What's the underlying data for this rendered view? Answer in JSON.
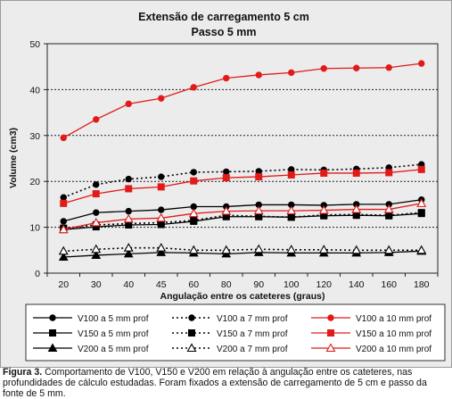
{
  "chart_data": {
    "type": "line",
    "title": "Extensão de carregamento 5 cm",
    "subtitle": "Passo 5 mm",
    "xlabel": "Angulação entre os cateteres (graus)",
    "ylabel": "Volume (cm3)",
    "ylim": [
      0,
      50
    ],
    "yticks": [
      0,
      10,
      20,
      30,
      40,
      50
    ],
    "grid": "horizontal dotted",
    "legend_position": "bottom",
    "categories": [
      "20",
      "30",
      "40",
      "45",
      "60",
      "80",
      "90",
      "100",
      "120",
      "140",
      "160",
      "180"
    ],
    "series": [
      {
        "name": "V100 a 5 mm prof",
        "color": "#000000",
        "line": "solid",
        "marker": "circle",
        "values": [
          11.3,
          13.2,
          13.5,
          13.8,
          14.5,
          14.5,
          14.9,
          14.9,
          14.8,
          15.0,
          15.0,
          16.0
        ]
      },
      {
        "name": "V100 a 7 mm prof",
        "color": "#000000",
        "line": "dotted",
        "marker": "circle",
        "values": [
          16.5,
          19.3,
          20.5,
          21.0,
          22.0,
          22.1,
          22.2,
          22.6,
          22.5,
          22.7,
          23.0,
          23.7
        ]
      },
      {
        "name": "V100 a 10 mm prof",
        "color": "#e21a1a",
        "line": "solid",
        "marker": "circle",
        "values": [
          29.5,
          33.5,
          36.9,
          38.1,
          40.5,
          42.5,
          43.2,
          43.7,
          44.6,
          44.7,
          44.8,
          45.7
        ]
      },
      {
        "name": "V150 a 5 mm prof",
        "color": "#000000",
        "line": "solid",
        "marker": "square",
        "values": [
          9.5,
          10.1,
          10.5,
          10.6,
          11.3,
          12.3,
          12.3,
          12.2,
          12.5,
          12.6,
          12.5,
          13.0
        ]
      },
      {
        "name": "V150 a 7 mm prof",
        "color": "#000000",
        "line": "dotted",
        "marker": "square",
        "values": [
          9.8,
          10.5,
          10.8,
          11.0,
          11.5,
          12.6,
          12.4,
          12.2,
          12.7,
          12.8,
          12.6,
          13.2
        ]
      },
      {
        "name": "V150 a 10 mm prof",
        "color": "#e21a1a",
        "line": "solid",
        "marker": "square",
        "values": [
          15.2,
          17.3,
          18.4,
          18.8,
          20.1,
          20.8,
          21.0,
          21.4,
          21.8,
          21.8,
          21.9,
          22.6
        ]
      },
      {
        "name": "V200 a 5 mm prof",
        "color": "#000000",
        "line": "solid",
        "marker": "triangle",
        "values": [
          3.5,
          3.9,
          4.2,
          4.5,
          4.4,
          4.2,
          4.5,
          4.4,
          4.4,
          4.4,
          4.5,
          4.8
        ]
      },
      {
        "name": "V200 a 7 mm prof",
        "color": "#000000",
        "line": "dotted",
        "marker": "triangle-open",
        "values": [
          4.8,
          5.2,
          5.5,
          5.5,
          5.0,
          5.0,
          5.2,
          5.1,
          5.1,
          5.0,
          5.0,
          5.0
        ]
      },
      {
        "name": "V200 a 10 mm prof",
        "color": "#e21a1a",
        "line": "solid",
        "marker": "triangle-open",
        "values": [
          9.5,
          11.0,
          11.8,
          12.0,
          13.0,
          13.5,
          13.6,
          13.6,
          13.7,
          13.9,
          13.9,
          15.2
        ]
      }
    ]
  },
  "caption": {
    "label": "Figura 3.",
    "text": " Comportamento de V100, V150 e V200 em relação à angulação entre os cateteres, nas profundidades de cálculo estudadas. Foram fixados a extensão de carregamento de 5 cm e passo da fonte de 5 mm."
  }
}
